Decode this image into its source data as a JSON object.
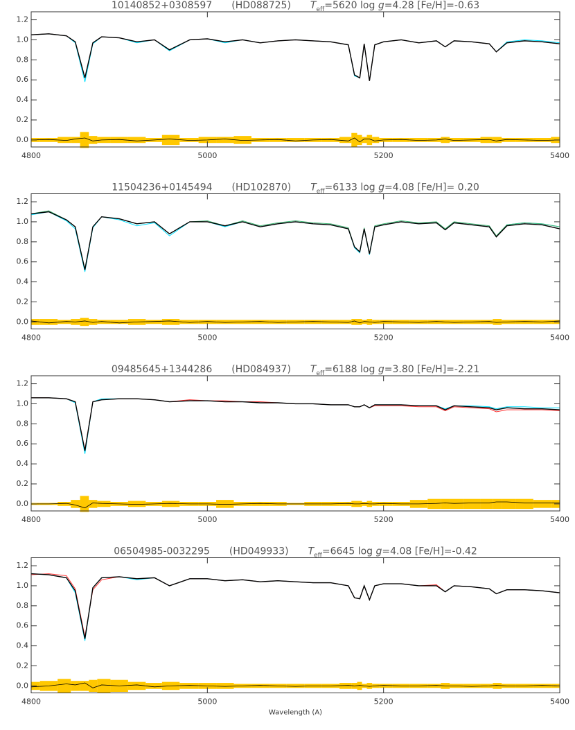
{
  "chart_data": [
    {
      "type": "line",
      "title": [
        "10140852+0308597",
        "(HD088725)",
        "T",
        "eff",
        "=5620 log ",
        "g",
        "=4.28 [Fe/H]=-0.63"
      ],
      "xlim": [
        4800,
        5400
      ],
      "xticks": [
        4800,
        5000,
        5200,
        5400
      ],
      "ylim": [
        -0.07,
        1.28
      ],
      "yticks": [
        {
          "value": 0,
          "label": "0.0"
        },
        0.2,
        0.4,
        0.6,
        0.8,
        {
          "value": 1,
          "label": "1.0"
        },
        1.2
      ],
      "x": [
        4800,
        4820,
        4840,
        4850,
        4861,
        4870,
        4880,
        4900,
        4920,
        4940,
        4957,
        4980,
        5000,
        5020,
        5040,
        5060,
        5080,
        5100,
        5120,
        5140,
        5160,
        5167,
        5173,
        5178,
        5184,
        5190,
        5200,
        5220,
        5240,
        5260,
        5270,
        5280,
        5300,
        5320,
        5328,
        5340,
        5360,
        5380,
        5400
      ],
      "error_band": {
        "color": "#ffc800",
        "values": [
          0.02,
          0.02,
          0.03,
          0.03,
          0.08,
          0.04,
          0.03,
          0.03,
          0.03,
          0.02,
          0.05,
          0.02,
          0.03,
          0.03,
          0.04,
          0.02,
          0.02,
          0.02,
          0.02,
          0.02,
          0.03,
          0.07,
          0.05,
          0.03,
          0.05,
          0.03,
          0.02,
          0.02,
          0.02,
          0.02,
          0.03,
          0.02,
          0.02,
          0.03,
          0.03,
          0.02,
          0.02,
          0.02,
          0.03
        ]
      },
      "series": [
        {
          "color": "#00e0ff",
          "values": [
            1.05,
            1.06,
            1.04,
            0.97,
            0.58,
            0.96,
            1.03,
            1.02,
            0.97,
            1.0,
            0.89,
            1.0,
            1.01,
            0.97,
            1.0,
            0.97,
            0.99,
            1.0,
            0.99,
            0.98,
            0.95,
            0.64,
            0.62,
            0.96,
            0.59,
            0.95,
            0.98,
            1.0,
            0.97,
            0.99,
            0.93,
            0.99,
            0.98,
            0.96,
            0.88,
            0.98,
            1.0,
            0.99,
            0.97
          ]
        },
        {
          "color": "#ff3030",
          "values": [
            1.05,
            1.06,
            1.04,
            0.98,
            0.62,
            0.97,
            1.03,
            1.02,
            0.98,
            1.0,
            0.9,
            1.0,
            1.01,
            0.98,
            1.0,
            0.97,
            0.99,
            1.0,
            0.99,
            0.98,
            0.95,
            0.65,
            0.62,
            0.96,
            0.59,
            0.95,
            0.98,
            1.0,
            0.97,
            0.99,
            0.93,
            0.99,
            0.98,
            0.96,
            0.88,
            0.97,
            0.99,
            0.98,
            0.96
          ]
        },
        {
          "color": "#000000",
          "values": [
            1.05,
            1.06,
            1.04,
            0.98,
            0.62,
            0.97,
            1.03,
            1.02,
            0.98,
            1.0,
            0.9,
            1.0,
            1.01,
            0.98,
            1.0,
            0.97,
            0.99,
            1.0,
            0.99,
            0.98,
            0.95,
            0.65,
            0.62,
            0.96,
            0.59,
            0.95,
            0.98,
            1.0,
            0.97,
            0.99,
            0.93,
            0.99,
            0.98,
            0.96,
            0.88,
            0.97,
            0.99,
            0.98,
            0.96
          ]
        }
      ],
      "residual": {
        "color": "#000000",
        "values": [
          0,
          0.005,
          -0.005,
          0.01,
          0.02,
          -0.01,
          0,
          0.005,
          -0.01,
          0,
          0.01,
          -0.005,
          0,
          0.01,
          -0.005,
          0,
          0.005,
          -0.01,
          0,
          0.005,
          -0.01,
          0.02,
          -0.02,
          0.01,
          0.01,
          -0.01,
          0,
          0.005,
          -0.005,
          0,
          0.01,
          -0.005,
          0,
          0.005,
          -0.01,
          0.005,
          0,
          -0.005,
          0
        ]
      }
    },
    {
      "type": "line",
      "title": [
        "11504236+0145494",
        "(HD102870)",
        "T",
        "eff",
        "=6133 log ",
        "g",
        "=4.08 [Fe/H]= 0.20"
      ],
      "xlim": [
        4800,
        5400
      ],
      "xticks": [
        4800,
        5000,
        5200,
        5400
      ],
      "ylim": [
        -0.07,
        1.28
      ],
      "yticks": [
        {
          "value": 0,
          "label": "0.0"
        },
        0.2,
        0.4,
        0.6,
        0.8,
        {
          "value": 1,
          "label": "1.0"
        },
        1.2
      ],
      "x": [
        4800,
        4820,
        4840,
        4850,
        4861,
        4870,
        4880,
        4900,
        4920,
        4940,
        4957,
        4980,
        5000,
        5020,
        5040,
        5060,
        5080,
        5100,
        5120,
        5140,
        5160,
        5167,
        5173,
        5178,
        5184,
        5190,
        5200,
        5220,
        5240,
        5260,
        5270,
        5280,
        5300,
        5320,
        5328,
        5340,
        5360,
        5380,
        5400
      ],
      "error_band": {
        "color": "#ffc800",
        "values": [
          0.03,
          0.03,
          0.02,
          0.03,
          0.04,
          0.03,
          0.02,
          0.02,
          0.03,
          0.02,
          0.03,
          0.02,
          0.02,
          0.02,
          0.02,
          0.02,
          0.02,
          0.02,
          0.02,
          0.02,
          0.02,
          0.03,
          0.03,
          0.02,
          0.03,
          0.02,
          0.02,
          0.02,
          0.02,
          0.02,
          0.02,
          0.02,
          0.02,
          0.02,
          0.03,
          0.02,
          0.02,
          0.02,
          0.02
        ]
      },
      "series": [
        {
          "color": "#00e0ff",
          "values": [
            1.07,
            1.1,
            1.01,
            0.93,
            0.5,
            0.94,
            1.05,
            1.02,
            0.96,
            0.99,
            0.86,
            1.0,
            1.0,
            0.95,
            1.0,
            0.95,
            0.98,
            1.0,
            0.98,
            0.97,
            0.93,
            0.74,
            0.69,
            0.93,
            0.67,
            0.95,
            0.97,
            1.0,
            0.98,
            0.99,
            0.92,
            0.99,
            0.97,
            0.95,
            0.85,
            0.97,
            0.99,
            0.98,
            0.95
          ]
        },
        {
          "color": "#3cb371",
          "values": [
            1.08,
            1.11,
            1.02,
            0.95,
            0.53,
            0.95,
            1.05,
            1.03,
            0.98,
            1.0,
            0.88,
            1.0,
            1.01,
            0.96,
            1.01,
            0.96,
            0.99,
            1.01,
            0.99,
            0.98,
            0.94,
            0.75,
            0.7,
            0.94,
            0.68,
            0.96,
            0.98,
            1.01,
            0.99,
            1.0,
            0.93,
            1.0,
            0.98,
            0.96,
            0.86,
            0.97,
            0.99,
            0.98,
            0.95
          ]
        },
        {
          "color": "#000000",
          "values": [
            1.08,
            1.1,
            1.02,
            0.95,
            0.52,
            0.95,
            1.05,
            1.03,
            0.98,
            1.0,
            0.88,
            1.0,
            1.0,
            0.96,
            1.0,
            0.95,
            0.98,
            1.0,
            0.98,
            0.97,
            0.93,
            0.75,
            0.7,
            0.93,
            0.68,
            0.95,
            0.97,
            1.0,
            0.98,
            0.99,
            0.92,
            0.99,
            0.97,
            0.95,
            0.85,
            0.96,
            0.98,
            0.97,
            0.93
          ]
        }
      ],
      "residual": {
        "color": "#000000",
        "values": [
          0.01,
          -0.01,
          0.005,
          0,
          0.01,
          -0.005,
          0.005,
          -0.01,
          0,
          0.005,
          0.01,
          -0.005,
          0.005,
          -0.005,
          0,
          0.005,
          -0.005,
          0,
          0.005,
          0,
          -0.005,
          0.01,
          -0.01,
          0.005,
          0,
          -0.005,
          0.005,
          0,
          -0.005,
          0.005,
          0,
          -0.005,
          0,
          0.005,
          -0.005,
          0,
          0.005,
          0,
          0.01
        ]
      }
    },
    {
      "type": "line",
      "title": [
        "09485645+1344286",
        "(HD084937)",
        "T",
        "eff",
        "=6188 log ",
        "g",
        "=3.80 [Fe/H]=-2.21"
      ],
      "xlim": [
        4800,
        5400
      ],
      "xticks": [
        4800,
        5000,
        5200,
        5400
      ],
      "ylim": [
        -0.07,
        1.28
      ],
      "yticks": [
        {
          "value": 0,
          "label": "0.0"
        },
        0.2,
        0.4,
        0.6,
        0.8,
        {
          "value": 1,
          "label": "1.0"
        },
        1.2
      ],
      "x": [
        4800,
        4820,
        4840,
        4850,
        4861,
        4870,
        4880,
        4900,
        4920,
        4940,
        4957,
        4980,
        5000,
        5020,
        5040,
        5060,
        5080,
        5100,
        5120,
        5140,
        5160,
        5167,
        5173,
        5178,
        5184,
        5190,
        5200,
        5220,
        5240,
        5260,
        5270,
        5280,
        5300,
        5320,
        5328,
        5340,
        5360,
        5380,
        5400
      ],
      "error_band": {
        "color": "#ffc800",
        "values": [
          0.01,
          0.01,
          0.02,
          0.04,
          0.08,
          0.04,
          0.03,
          0.02,
          0.03,
          0.02,
          0.03,
          0.02,
          0.02,
          0.04,
          0.02,
          0.02,
          0.02,
          0.01,
          0.02,
          0.02,
          0.02,
          0.03,
          0.03,
          0.02,
          0.03,
          0.02,
          0.02,
          0.02,
          0.04,
          0.05,
          0.05,
          0.05,
          0.05,
          0.05,
          0.05,
          0.05,
          0.05,
          0.04,
          0.04
        ]
      },
      "series": [
        {
          "color": "#00e0ff",
          "values": [
            1.06,
            1.06,
            1.05,
            1.01,
            0.5,
            1.02,
            1.05,
            1.05,
            1.05,
            1.04,
            1.02,
            1.03,
            1.03,
            1.02,
            1.02,
            1.01,
            1.01,
            1.0,
            1.0,
            0.99,
            0.99,
            0.97,
            0.97,
            0.99,
            0.96,
            0.99,
            0.99,
            0.99,
            0.98,
            0.98,
            0.95,
            0.98,
            0.98,
            0.97,
            0.95,
            0.97,
            0.97,
            0.96,
            0.96
          ]
        },
        {
          "color": "#ff3030",
          "values": [
            1.06,
            1.06,
            1.05,
            1.02,
            0.54,
            1.02,
            1.04,
            1.05,
            1.05,
            1.04,
            1.02,
            1.04,
            1.03,
            1.03,
            1.02,
            1.02,
            1.01,
            1.0,
            1.0,
            0.99,
            0.99,
            0.97,
            0.97,
            0.99,
            0.96,
            0.98,
            0.98,
            0.98,
            0.97,
            0.97,
            0.93,
            0.97,
            0.96,
            0.95,
            0.92,
            0.94,
            0.94,
            0.94,
            0.93
          ]
        },
        {
          "color": "#000000",
          "values": [
            1.06,
            1.06,
            1.05,
            1.02,
            0.53,
            1.02,
            1.04,
            1.05,
            1.05,
            1.04,
            1.02,
            1.03,
            1.03,
            1.02,
            1.02,
            1.01,
            1.01,
            1.0,
            1.0,
            0.99,
            0.99,
            0.97,
            0.97,
            0.99,
            0.96,
            0.99,
            0.99,
            0.99,
            0.98,
            0.98,
            0.94,
            0.98,
            0.97,
            0.96,
            0.94,
            0.96,
            0.95,
            0.95,
            0.94
          ]
        }
      ],
      "residual": {
        "color": "#000000",
        "values": [
          0,
          0,
          0.005,
          -0.01,
          -0.04,
          0.01,
          0.005,
          0,
          -0.005,
          0,
          0.005,
          0,
          0,
          -0.005,
          0,
          0.005,
          0,
          0,
          0,
          0,
          0.005,
          0,
          0,
          0.005,
          0,
          0,
          0.005,
          0,
          0,
          0.005,
          0.01,
          0.005,
          0.01,
          0.01,
          0.02,
          0.02,
          0.01,
          0.01,
          0.01
        ]
      }
    },
    {
      "type": "line",
      "title": [
        "06504985-0032295",
        "(HD049933)",
        "T",
        "eff",
        "=6645 log ",
        "g",
        "=4.08 [Fe/H]=-0.42"
      ],
      "xlabel": "Wavelength (A)",
      "xlim": [
        4800,
        5400
      ],
      "xticks": [
        4800,
        5000,
        5200,
        5400
      ],
      "ylim": [
        -0.07,
        1.28
      ],
      "yticks": [
        {
          "value": 0,
          "label": "0.0"
        },
        0.2,
        0.4,
        0.6,
        0.8,
        {
          "value": 1,
          "label": "1.0"
        },
        1.2
      ],
      "x": [
        4800,
        4820,
        4840,
        4850,
        4861,
        4870,
        4880,
        4900,
        4920,
        4940,
        4957,
        4980,
        5000,
        5020,
        5040,
        5060,
        5080,
        5100,
        5120,
        5140,
        5160,
        5167,
        5173,
        5178,
        5184,
        5190,
        5200,
        5220,
        5240,
        5260,
        5270,
        5280,
        5300,
        5320,
        5328,
        5340,
        5360,
        5380,
        5400
      ],
      "error_band": {
        "color": "#ffc800",
        "values": [
          0.04,
          0.05,
          0.07,
          0.05,
          0.05,
          0.06,
          0.07,
          0.06,
          0.04,
          0.03,
          0.04,
          0.03,
          0.03,
          0.03,
          0.02,
          0.02,
          0.02,
          0.02,
          0.02,
          0.02,
          0.03,
          0.03,
          0.04,
          0.02,
          0.03,
          0.02,
          0.02,
          0.02,
          0.02,
          0.02,
          0.03,
          0.02,
          0.02,
          0.02,
          0.03,
          0.02,
          0.02,
          0.02,
          0.02
        ]
      },
      "series": [
        {
          "color": "#00e0ff",
          "values": [
            1.12,
            1.11,
            1.08,
            0.93,
            0.45,
            0.98,
            1.08,
            1.09,
            1.06,
            1.08,
            1.0,
            1.07,
            1.07,
            1.05,
            1.06,
            1.04,
            1.05,
            1.04,
            1.03,
            1.03,
            1.0,
            0.88,
            0.87,
            1.0,
            0.86,
            1.0,
            1.02,
            1.02,
            1.0,
            1.0,
            0.94,
            1.0,
            0.99,
            0.97,
            0.92,
            0.96,
            0.96,
            0.95,
            0.93
          ]
        },
        {
          "color": "#ff3030",
          "values": [
            1.11,
            1.12,
            1.1,
            0.97,
            0.49,
            0.96,
            1.06,
            1.09,
            1.07,
            1.08,
            1.0,
            1.07,
            1.07,
            1.05,
            1.06,
            1.04,
            1.05,
            1.04,
            1.03,
            1.03,
            1.0,
            0.88,
            0.87,
            1.0,
            0.86,
            1.0,
            1.02,
            1.02,
            1.0,
            1.01,
            0.94,
            1.0,
            0.99,
            0.97,
            0.92,
            0.96,
            0.96,
            0.95,
            0.93
          ]
        },
        {
          "color": "#000000",
          "values": [
            1.12,
            1.11,
            1.08,
            0.95,
            0.47,
            0.98,
            1.08,
            1.09,
            1.07,
            1.08,
            1.0,
            1.07,
            1.07,
            1.05,
            1.06,
            1.04,
            1.05,
            1.04,
            1.03,
            1.03,
            1.0,
            0.88,
            0.87,
            1.0,
            0.86,
            1.0,
            1.02,
            1.02,
            1.0,
            1.0,
            0.94,
            1.0,
            0.99,
            0.97,
            0.92,
            0.96,
            0.96,
            0.95,
            0.93
          ]
        }
      ],
      "residual": {
        "color": "#000000",
        "values": [
          -0.01,
          0,
          0.02,
          0.01,
          0.03,
          -0.02,
          0.01,
          0,
          0.01,
          -0.01,
          0,
          0.005,
          0,
          -0.005,
          0,
          0.005,
          0,
          -0.005,
          0,
          0,
          0.005,
          0,
          0.005,
          0,
          -0.005,
          0,
          0.005,
          0,
          0,
          0.005,
          0,
          0,
          -0.005,
          0,
          0.005,
          0,
          0,
          0.005,
          0
        ]
      }
    }
  ]
}
